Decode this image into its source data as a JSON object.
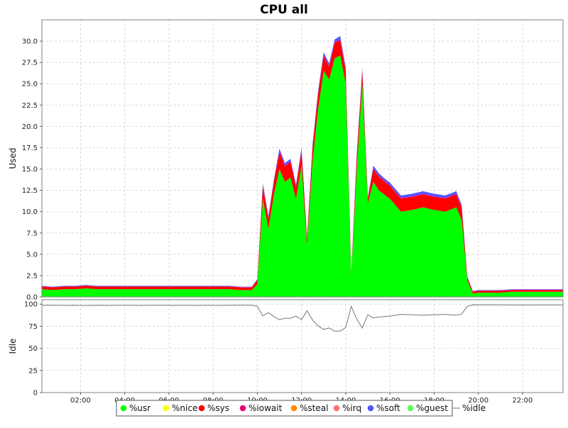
{
  "chart_data": {
    "type": "area",
    "title": "CPU all",
    "x_ticks": [
      "02:00",
      "04:00",
      "06:00",
      "08:00",
      "10:00",
      "12:00",
      "14:00",
      "16:00",
      "18:00",
      "20:00",
      "22:00"
    ],
    "x_range": [
      "00:15",
      "23:50"
    ],
    "grid": true,
    "legend_placement": "bottom",
    "panels": [
      {
        "name": "used",
        "ylabel": "Used",
        "ylim": [
          0,
          32.5
        ],
        "y_ticks": [
          "0.0",
          "2.5",
          "5.0",
          "7.5",
          "10.0",
          "12.5",
          "15.0",
          "17.5",
          "20.0",
          "22.5",
          "25.0",
          "27.5",
          "30.0"
        ],
        "x": [
          "00:15",
          "00:45",
          "01:15",
          "01:45",
          "02:15",
          "02:45",
          "03:15",
          "03:45",
          "04:15",
          "04:45",
          "05:15",
          "05:45",
          "06:15",
          "06:45",
          "07:15",
          "07:45",
          "08:15",
          "08:45",
          "09:15",
          "09:45",
          "10:00",
          "10:15",
          "10:30",
          "10:45",
          "11:00",
          "11:15",
          "11:30",
          "11:45",
          "12:00",
          "12:15",
          "12:30",
          "12:45",
          "13:00",
          "13:15",
          "13:30",
          "13:45",
          "14:00",
          "14:15",
          "14:30",
          "14:45",
          "15:00",
          "15:15",
          "15:30",
          "15:45",
          "16:00",
          "16:30",
          "17:00",
          "17:30",
          "18:00",
          "18:30",
          "19:00",
          "19:15",
          "19:30",
          "19:45",
          "20:00",
          "20:30",
          "21:00",
          "21:30",
          "22:00",
          "22:30",
          "23:00",
          "23:30",
          "23:50"
        ],
        "series": [
          {
            "name": "%usr",
            "color": "#00ff00",
            "values": [
              0.9,
              0.8,
              0.9,
              0.9,
              1.0,
              0.9,
              0.9,
              0.9,
              0.9,
              0.9,
              0.9,
              0.9,
              0.9,
              0.9,
              0.9,
              0.9,
              0.9,
              0.9,
              0.8,
              0.8,
              1.5,
              11.5,
              8.0,
              12.0,
              15.0,
              13.5,
              14.0,
              11.5,
              15.5,
              6.0,
              16.0,
              22.0,
              26.5,
              25.5,
              28.0,
              28.3,
              25.0,
              2.5,
              15.0,
              25.0,
              11.0,
              13.5,
              12.5,
              12.0,
              11.5,
              10.0,
              10.2,
              10.5,
              10.2,
              10.0,
              10.5,
              9.0,
              2.0,
              0.4,
              0.5,
              0.5,
              0.5,
              0.6,
              0.6,
              0.6,
              0.6,
              0.6,
              0.6
            ]
          },
          {
            "name": "%nice",
            "color": "#ffff00",
            "values": [
              0,
              0,
              0,
              0,
              0,
              0,
              0,
              0,
              0,
              0,
              0,
              0,
              0,
              0,
              0,
              0,
              0,
              0,
              0,
              0,
              0,
              0,
              0,
              0,
              0,
              0,
              0,
              0,
              0,
              0,
              0,
              0,
              0,
              0,
              0,
              0,
              0,
              0,
              0,
              0,
              0,
              0,
              0,
              0,
              0,
              0,
              0,
              0,
              0,
              0,
              0,
              0,
              0,
              0,
              0,
              0,
              0,
              0,
              0,
              0,
              0,
              0,
              0
            ]
          },
          {
            "name": "%sys",
            "color": "#ff0000",
            "values": [
              0.3,
              0.3,
              0.3,
              0.3,
              0.3,
              0.3,
              0.3,
              0.3,
              0.3,
              0.3,
              0.3,
              0.3,
              0.3,
              0.3,
              0.3,
              0.3,
              0.3,
              0.3,
              0.3,
              0.3,
              0.5,
              1.5,
              1.2,
              1.5,
              2.0,
              1.8,
              1.8,
              1.4,
              1.6,
              0.8,
              1.6,
              1.8,
              1.8,
              1.5,
              1.8,
              1.8,
              1.5,
              0.3,
              1.5,
              1.5,
              0.6,
              1.5,
              1.6,
              1.5,
              1.5,
              1.5,
              1.5,
              1.5,
              1.5,
              1.5,
              1.5,
              1.4,
              0.3,
              0.2,
              0.2,
              0.2,
              0.2,
              0.2,
              0.2,
              0.2,
              0.2,
              0.2,
              0.2
            ]
          },
          {
            "name": "%iowait",
            "color": "#e8007a",
            "values": [
              0.05,
              0.05,
              0.05,
              0.05,
              0.05,
              0.05,
              0.05,
              0.05,
              0.05,
              0.05,
              0.05,
              0.05,
              0.05,
              0.05,
              0.05,
              0.05,
              0.05,
              0.05,
              0.05,
              0.05,
              0.05,
              0.1,
              0.1,
              0.1,
              0.1,
              0.1,
              0.1,
              0.1,
              0.1,
              0.05,
              0.1,
              0.1,
              0.1,
              0.1,
              0.1,
              0.1,
              0.1,
              0.05,
              0.1,
              0.1,
              0.05,
              0.1,
              0.1,
              0.1,
              0.1,
              0.1,
              0.1,
              0.1,
              0.1,
              0.1,
              0.1,
              0.1,
              0.05,
              0.05,
              0.05,
              0.05,
              0.05,
              0.05,
              0.05,
              0.05,
              0.05,
              0.05,
              0.05
            ]
          },
          {
            "name": "%steal",
            "color": "#ff8c00",
            "values": [
              0,
              0,
              0,
              0,
              0,
              0,
              0,
              0,
              0,
              0,
              0,
              0,
              0,
              0,
              0,
              0,
              0,
              0,
              0,
              0,
              0,
              0,
              0,
              0,
              0,
              0,
              0,
              0,
              0,
              0,
              0,
              0,
              0,
              0,
              0,
              0,
              0,
              0,
              0,
              0,
              0,
              0,
              0,
              0,
              0,
              0,
              0,
              0,
              0,
              0,
              0,
              0,
              0,
              0,
              0,
              0,
              0,
              0,
              0,
              0,
              0,
              0,
              0
            ]
          },
          {
            "name": "%irq",
            "color": "#ff6f6f",
            "values": [
              0,
              0,
              0,
              0,
              0,
              0,
              0,
              0,
              0,
              0,
              0,
              0,
              0,
              0,
              0,
              0,
              0,
              0,
              0,
              0,
              0,
              0,
              0,
              0,
              0,
              0,
              0,
              0,
              0,
              0,
              0,
              0,
              0,
              0,
              0,
              0,
              0,
              0,
              0,
              0,
              0,
              0,
              0,
              0,
              0,
              0,
              0,
              0,
              0,
              0,
              0,
              0,
              0,
              0,
              0,
              0,
              0,
              0,
              0,
              0,
              0,
              0,
              0
            ]
          },
          {
            "name": "%soft",
            "color": "#5555ff",
            "values": [
              0.05,
              0.05,
              0.05,
              0.05,
              0.05,
              0.05,
              0.05,
              0.05,
              0.05,
              0.05,
              0.05,
              0.05,
              0.05,
              0.05,
              0.05,
              0.05,
              0.05,
              0.05,
              0.05,
              0.05,
              0.05,
              0.2,
              0.2,
              0.2,
              0.3,
              0.3,
              0.3,
              0.2,
              0.3,
              0.1,
              0.3,
              0.3,
              0.3,
              0.3,
              0.3,
              0.4,
              0.3,
              0.05,
              0.3,
              0.3,
              0.1,
              0.3,
              0.3,
              0.3,
              0.3,
              0.3,
              0.3,
              0.3,
              0.3,
              0.3,
              0.3,
              0.3,
              0.05,
              0.05,
              0.05,
              0.05,
              0.05,
              0.05,
              0.05,
              0.05,
              0.05,
              0.05,
              0.05
            ]
          },
          {
            "name": "%guest",
            "color": "#55ff55",
            "values": [
              0,
              0,
              0,
              0,
              0,
              0,
              0,
              0,
              0,
              0,
              0,
              0,
              0,
              0,
              0,
              0,
              0,
              0,
              0,
              0,
              0,
              0,
              0,
              0,
              0,
              0,
              0,
              0,
              0,
              0,
              0,
              0,
              0,
              0,
              0,
              0,
              0,
              0,
              0,
              0,
              0,
              0,
              0,
              0,
              0,
              0,
              0,
              0,
              0,
              0,
              0,
              0,
              0,
              0,
              0,
              0,
              0,
              0,
              0,
              0,
              0,
              0,
              0
            ]
          }
        ]
      },
      {
        "name": "idle",
        "ylabel": "Idle",
        "ylim": [
          0,
          105
        ],
        "y_ticks": [
          "0",
          "25",
          "50",
          "75",
          "100"
        ],
        "x": [
          "00:15",
          "00:45",
          "01:15",
          "01:45",
          "02:15",
          "02:45",
          "03:15",
          "03:45",
          "04:15",
          "04:45",
          "05:15",
          "05:45",
          "06:15",
          "06:45",
          "07:15",
          "07:45",
          "08:15",
          "08:45",
          "09:15",
          "09:45",
          "10:00",
          "10:15",
          "10:30",
          "10:45",
          "11:00",
          "11:15",
          "11:30",
          "11:45",
          "12:00",
          "12:15",
          "12:30",
          "12:45",
          "13:00",
          "13:15",
          "13:30",
          "13:45",
          "14:00",
          "14:15",
          "14:30",
          "14:45",
          "15:00",
          "15:15",
          "15:30",
          "15:45",
          "16:00",
          "16:30",
          "17:00",
          "17:30",
          "18:00",
          "18:30",
          "19:00",
          "19:15",
          "19:30",
          "19:45",
          "20:00",
          "20:30",
          "21:00",
          "21:30",
          "22:00",
          "22:30",
          "23:00",
          "23:30",
          "23:50"
        ],
        "series": [
          {
            "name": "%idle",
            "color": "#777777",
            "values": [
              98.7,
              98.8,
              98.6,
              98.7,
              98.5,
              98.7,
              98.6,
              98.7,
              98.7,
              98.6,
              98.7,
              98.7,
              98.6,
              98.7,
              98.6,
              98.7,
              98.6,
              98.7,
              98.8,
              98.8,
              97.5,
              86.5,
              90.5,
              86.0,
              82.5,
              84.0,
              84.0,
              86.5,
              82.5,
              92.5,
              82.0,
              75.5,
              71.5,
              73.0,
              69.5,
              69.5,
              73.5,
              97.5,
              83.0,
              73.0,
              88.0,
              84.5,
              85.5,
              86.0,
              86.5,
              88.5,
              88.0,
              87.5,
              88.0,
              88.5,
              87.5,
              89.0,
              97.5,
              99.3,
              99.2,
              99.2,
              99.2,
              99.1,
              99.1,
              99.1,
              99.1,
              99.1,
              99.1
            ]
          }
        ]
      }
    ],
    "legend": [
      "%usr",
      "%nice",
      "%sys",
      "%iowait",
      "%steal",
      "%irq",
      "%soft",
      "%guest",
      "%idle"
    ]
  }
}
